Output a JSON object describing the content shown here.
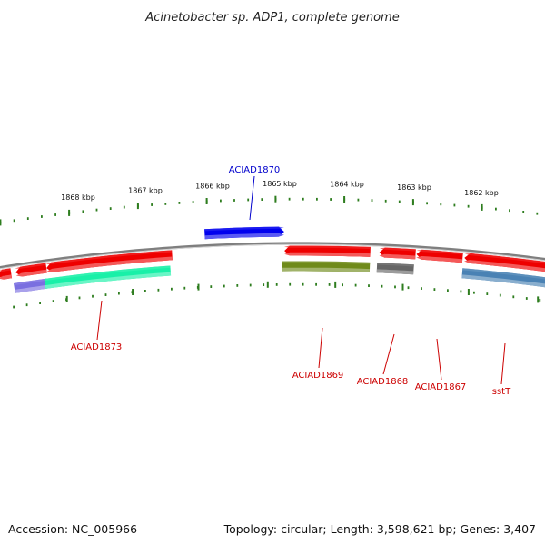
{
  "title": "Acinetobacter sp. ADP1, complete genome",
  "footer": {
    "accession": "Accession: NC_005966",
    "summary": "Topology: circular; Length: 3,598,621 bp; Genes: 3,407"
  },
  "colors": {
    "backbone": "#8a8a8a",
    "tick": "#2e7d1f",
    "forward_strand_gene": "#0000ee",
    "reverse_strand_gene": "#ee0000",
    "forward_label": "#0000cc",
    "reverse_label": "#cc0000"
  },
  "ticks": [
    {
      "label": "1868 kbp"
    },
    {
      "label": "1867 kbp"
    },
    {
      "label": "1866 kbp"
    },
    {
      "label": "1865 kbp"
    },
    {
      "label": "1864 kbp"
    },
    {
      "label": "1863 kbp"
    },
    {
      "label": "1862 kbp"
    }
  ],
  "genes_forward": [
    {
      "name": "ACIAD1870",
      "labeled": true,
      "color": "#0000ee"
    }
  ],
  "genes_reverse": [
    {
      "name": "",
      "labeled": false,
      "color": "#ee0000"
    },
    {
      "name": "",
      "labeled": false,
      "color": "#ee0000"
    },
    {
      "name": "",
      "labeled": false,
      "color": "#ee0000"
    },
    {
      "name": "",
      "labeled": false,
      "color": "#ee0000"
    },
    {
      "name": "",
      "labeled": false,
      "color": "#ee0000"
    },
    {
      "name": "",
      "labeled": false,
      "color": "#ee0000"
    },
    {
      "name": "",
      "labeled": false,
      "color": "#ee0000"
    }
  ],
  "genes_secondary": [
    {
      "name": "",
      "labeled": false,
      "color": "#7a6fe0"
    },
    {
      "name": "ACIAD1873",
      "labeled": true,
      "color": "#19f0a8"
    },
    {
      "name": "ACIAD1869",
      "labeled": true,
      "color": "#6f8a1a"
    },
    {
      "name": "ACIAD1868",
      "labeled": true,
      "color": "#666666"
    },
    {
      "name": "ACIAD1867",
      "labeled": true,
      "color": "#ee0000"
    },
    {
      "name": "sstT",
      "labeled": true,
      "color": "#4a82b4"
    }
  ]
}
